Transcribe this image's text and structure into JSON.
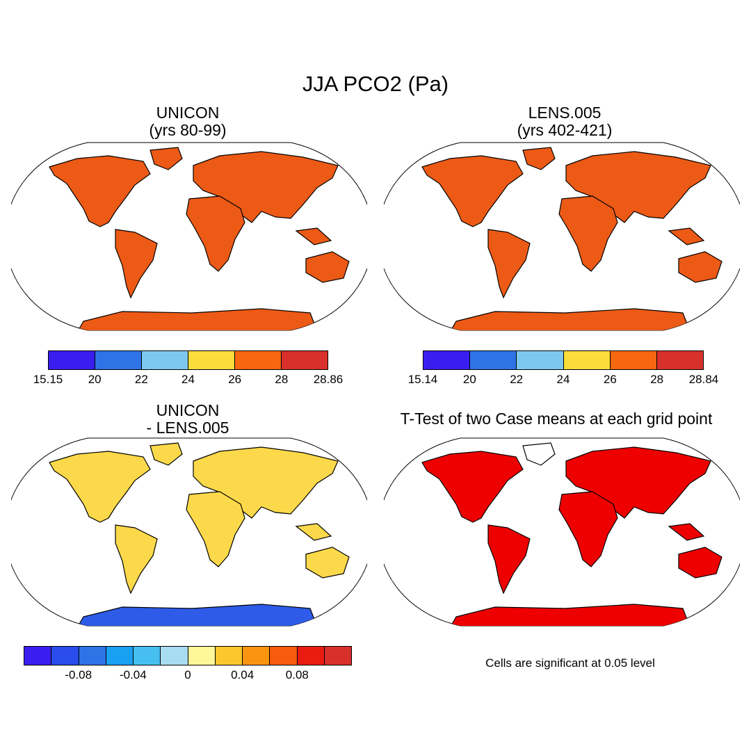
{
  "figure": {
    "title": "JJA PCO2 (Pa)",
    "panels": {
      "top_left": {
        "title_line1": "UNICON",
        "title_line2": "(yrs 80-99)"
      },
      "top_right": {
        "title_line1": "LENS.005",
        "title_line2": "(yrs 402-421)"
      },
      "bottom_left": {
        "title_line1": "UNICON",
        "title_line2": "- LENS.005"
      },
      "bottom_right": {
        "title": "T-Test of two Case means at each grid point",
        "note": "Cells are significant at 0.05 level"
      }
    }
  },
  "colorbars": {
    "abs_colors": [
      "#3a1ef0",
      "#2e74e6",
      "#7ec8ef",
      "#fcdc3a",
      "#f76710",
      "#d8312c"
    ],
    "unicon_labels": [
      "15.15",
      "20",
      "22",
      "24",
      "26",
      "28",
      "28.86"
    ],
    "lens_labels": [
      "15.14",
      "20",
      "22",
      "24",
      "26",
      "28",
      "28.84"
    ],
    "diff_colors": [
      "#3a1ef0",
      "#2a4cec",
      "#2e74e6",
      "#1aa0f2",
      "#46bff0",
      "#a8dcf2",
      "#fff799",
      "#fcc72c",
      "#fa9511",
      "#f75b0e",
      "#ea1c12",
      "#d8312c"
    ],
    "diff_labels": [
      "-0.08",
      "-0.04",
      "0",
      "0.04",
      "0.08"
    ]
  },
  "map_layers": {
    "land_fill_abs": "#ec5a16",
    "land_fill_diff": "#fcd94a",
    "significance_fill": "#ee0000",
    "coastline": "#000000"
  }
}
